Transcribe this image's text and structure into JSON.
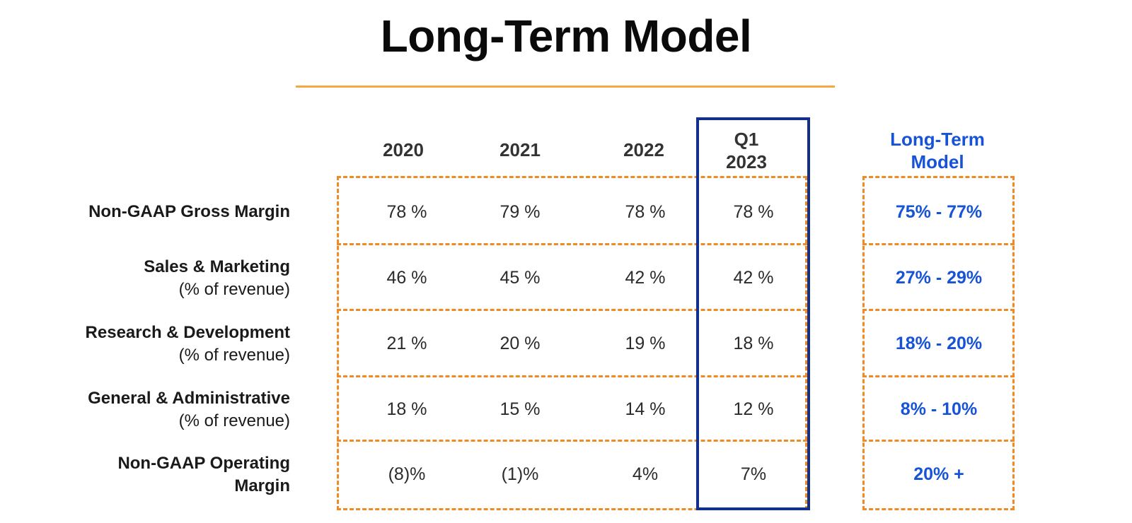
{
  "title": "Long-Term Model",
  "columns": {
    "c2020": "2020",
    "c2021": "2021",
    "c2022": "2022",
    "q1_line1": "Q1",
    "q1_line2": "2023",
    "lt_line1": "Long-Term",
    "lt_line2": "Model"
  },
  "rows": [
    {
      "label": "Non-GAAP Gross Margin",
      "sub": "",
      "v2020": "78 %",
      "v2021": "79 %",
      "v2022": "78 %",
      "q1": "78 %",
      "lt": "75% - 77%"
    },
    {
      "label": "Sales & Marketing",
      "sub": "(% of revenue)",
      "v2020": "46 %",
      "v2021": "45 %",
      "v2022": "42 %",
      "q1": "42 %",
      "lt": "27% - 29%"
    },
    {
      "label": "Research & Development",
      "sub": "(% of revenue)",
      "v2020": "21 %",
      "v2021": "20 %",
      "v2022": "19 %",
      "q1": "18 %",
      "lt": "18% - 20%"
    },
    {
      "label": "General & Administrative",
      "sub": "(% of revenue)",
      "v2020": "18 %",
      "v2021": "15 %",
      "v2022": "14 %",
      "q1": "12 %",
      "lt": "8% - 10%"
    },
    {
      "label": "Non-GAAP Operating",
      "sub": "Margin",
      "v2020": "(8)%",
      "v2021": "(1)%",
      "v2022": "4%",
      "q1": "7%",
      "lt": "20% +"
    }
  ],
  "colors": {
    "accent_rule": "#f5a742",
    "dashed_border": "#ef8a25",
    "highlight_border": "#132f8c",
    "long_term_text": "#1753d6"
  }
}
